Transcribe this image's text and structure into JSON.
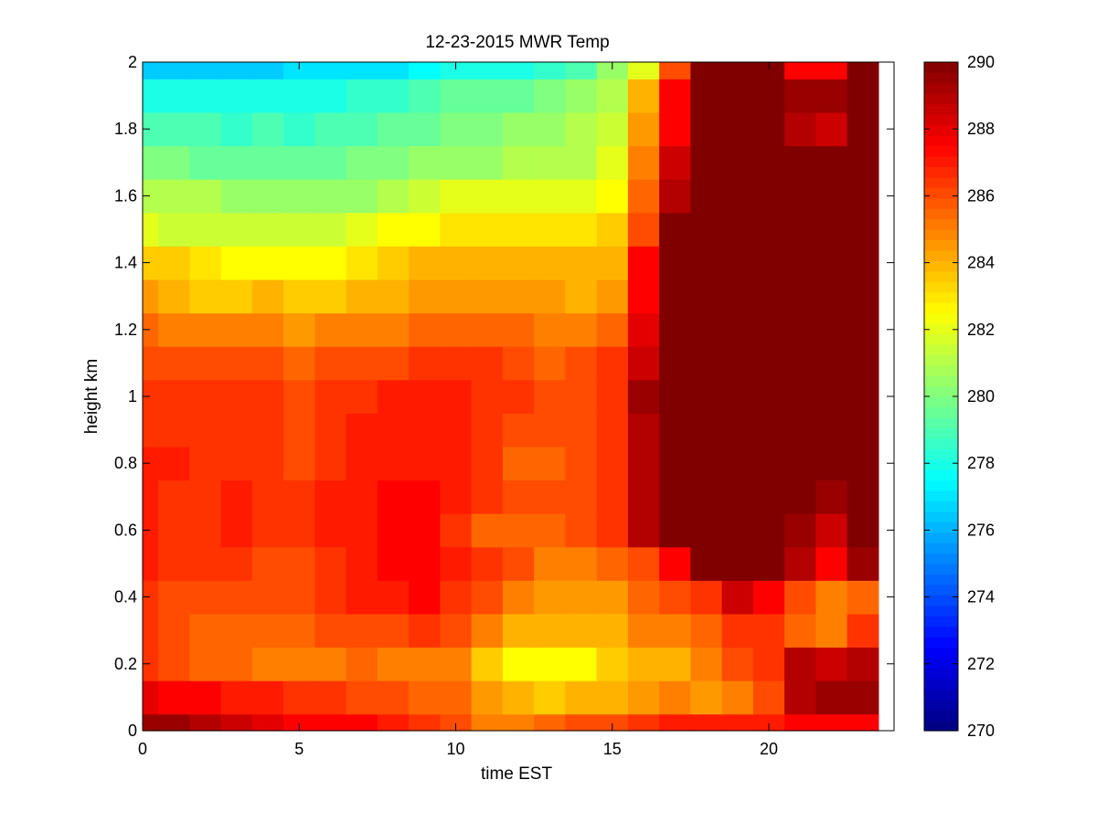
{
  "chart_data": {
    "type": "heatmap",
    "title": "12-23-2015 MWR Temp",
    "xlabel": "time EST",
    "ylabel": "height km",
    "xlim": [
      0,
      24
    ],
    "ylim": [
      0,
      2
    ],
    "xticks": [
      0,
      5,
      10,
      15,
      20
    ],
    "xtick_labels": [
      "0",
      "5",
      "10",
      "15",
      "20"
    ],
    "yticks": [
      0,
      0.2,
      0.4,
      0.6,
      0.8,
      1,
      1.2,
      1.4,
      1.6,
      1.8,
      2
    ],
    "ytick_labels": [
      "0",
      "0.2",
      "0.4",
      "0.6",
      "0.8",
      "1",
      "1.2",
      "1.4",
      "1.6",
      "1.8",
      "2"
    ],
    "colorbar": {
      "colormap": "jet",
      "clim": [
        270,
        290
      ],
      "ticks": [
        270,
        272,
        274,
        276,
        278,
        280,
        282,
        284,
        286,
        288,
        290
      ],
      "tick_labels": [
        "270",
        "272",
        "274",
        "276",
        "278",
        "280",
        "282",
        "284",
        "286",
        "288",
        "290"
      ]
    },
    "x_edges": [
      0,
      0.5,
      1.5,
      2.5,
      3.5,
      4.5,
      5.5,
      6.5,
      7.5,
      8.5,
      9.5,
      10.5,
      11.5,
      12.5,
      13.5,
      14.5,
      15.5,
      16.5,
      17.5,
      18.5,
      19.5,
      20.5,
      21.5,
      22.5,
      23.5
    ],
    "y_edges": [
      0,
      0.05,
      0.15,
      0.25,
      0.35,
      0.45,
      0.55,
      0.65,
      0.75,
      0.85,
      0.95,
      1.05,
      1.15,
      1.25,
      1.35,
      1.45,
      1.55,
      1.65,
      1.75,
      1.85,
      1.95,
      2
    ],
    "values": [
      [
        289.5,
        289.5,
        289.0,
        288.5,
        288.0,
        287.5,
        287.5,
        287.5,
        287.0,
        286.5,
        286.0,
        285.0,
        285.0,
        285.5,
        286.0,
        286.0,
        286.5,
        287.0,
        287.0,
        287.0,
        287.0,
        287.5,
        287.5,
        287.5
      ],
      [
        288.0,
        287.5,
        287.5,
        287.0,
        287.0,
        286.5,
        286.5,
        286.0,
        286.0,
        285.5,
        285.5,
        284.5,
        284.0,
        283.5,
        284.0,
        284.0,
        284.5,
        285.0,
        284.5,
        285.0,
        286.0,
        289.0,
        289.5,
        289.5
      ],
      [
        286.5,
        286.0,
        285.5,
        285.5,
        285.0,
        285.0,
        285.0,
        285.5,
        285.0,
        285.0,
        285.0,
        283.5,
        282.5,
        282.5,
        282.5,
        283.5,
        284.0,
        284.0,
        285.0,
        286.0,
        286.5,
        289.0,
        288.5,
        289.0
      ],
      [
        286.5,
        286.0,
        285.5,
        285.5,
        285.5,
        285.5,
        286.0,
        286.0,
        286.0,
        286.5,
        286.0,
        285.0,
        284.0,
        284.0,
        284.0,
        284.0,
        285.0,
        285.0,
        285.5,
        286.5,
        286.5,
        285.5,
        285.0,
        286.5
      ],
      [
        286.5,
        286.0,
        286.0,
        286.0,
        286.0,
        286.0,
        286.5,
        287.0,
        287.0,
        287.5,
        286.5,
        286.0,
        285.0,
        284.5,
        284.5,
        284.5,
        285.5,
        286.0,
        286.5,
        288.5,
        287.5,
        286.0,
        285.0,
        285.5
      ],
      [
        287.0,
        286.5,
        286.5,
        286.5,
        286.0,
        286.0,
        286.5,
        287.0,
        287.5,
        287.5,
        287.0,
        286.5,
        286.0,
        285.0,
        285.0,
        285.5,
        286.0,
        287.5,
        290.0,
        290.0,
        290.0,
        289.0,
        287.5,
        289.5
      ],
      [
        287.0,
        286.5,
        286.5,
        287.0,
        286.5,
        286.5,
        287.0,
        287.0,
        287.5,
        287.5,
        286.5,
        285.5,
        285.5,
        285.5,
        286.0,
        286.5,
        289.0,
        290.0,
        290.0,
        290.0,
        290.0,
        289.5,
        288.5,
        290.0
      ],
      [
        287.0,
        286.5,
        286.5,
        287.0,
        286.5,
        286.5,
        287.0,
        287.0,
        287.5,
        287.5,
        287.0,
        286.5,
        286.0,
        286.0,
        286.0,
        286.5,
        289.0,
        290.0,
        290.0,
        290.0,
        290.0,
        290.0,
        289.5,
        290.0
      ],
      [
        287.0,
        287.0,
        286.5,
        286.5,
        286.5,
        286.0,
        286.5,
        287.0,
        287.0,
        287.0,
        287.0,
        286.5,
        285.5,
        285.5,
        286.0,
        286.5,
        289.0,
        290.0,
        290.0,
        290.0,
        290.0,
        290.0,
        290.0,
        290.0
      ],
      [
        286.5,
        286.5,
        286.5,
        286.5,
        286.5,
        286.0,
        286.5,
        287.0,
        287.0,
        287.0,
        287.0,
        286.5,
        286.0,
        286.0,
        286.0,
        286.5,
        289.0,
        290.0,
        290.0,
        290.0,
        290.0,
        290.0,
        290.0,
        290.0
      ],
      [
        286.5,
        286.5,
        286.5,
        286.5,
        286.5,
        286.0,
        286.5,
        286.5,
        287.0,
        287.0,
        287.0,
        286.5,
        286.5,
        286.0,
        286.0,
        286.5,
        289.5,
        290.0,
        290.0,
        290.0,
        290.0,
        290.0,
        290.0,
        290.0
      ],
      [
        286.0,
        286.0,
        286.0,
        286.0,
        286.0,
        285.5,
        286.0,
        286.0,
        286.0,
        286.5,
        286.5,
        286.5,
        286.0,
        285.5,
        286.0,
        286.5,
        288.5,
        290.0,
        290.0,
        290.0,
        290.0,
        290.0,
        290.0,
        290.0
      ],
      [
        285.5,
        285.0,
        285.0,
        285.0,
        285.0,
        284.5,
        285.0,
        285.0,
        285.0,
        285.5,
        285.5,
        285.5,
        285.5,
        285.0,
        285.0,
        285.5,
        288.0,
        290.0,
        290.0,
        290.0,
        290.0,
        290.0,
        290.0,
        290.0
      ],
      [
        284.5,
        284.0,
        283.5,
        283.5,
        284.0,
        283.5,
        283.5,
        284.0,
        284.0,
        284.5,
        284.5,
        284.5,
        284.5,
        284.5,
        284.0,
        284.5,
        287.5,
        290.0,
        290.0,
        290.0,
        290.0,
        290.0,
        290.0,
        290.0
      ],
      [
        283.5,
        283.5,
        283.0,
        282.5,
        282.5,
        282.5,
        282.5,
        283.0,
        283.5,
        284.0,
        284.0,
        284.0,
        284.0,
        284.0,
        284.0,
        284.0,
        287.5,
        290.0,
        290.0,
        290.0,
        290.0,
        290.0,
        290.0,
        290.0
      ],
      [
        282.0,
        281.5,
        281.5,
        281.5,
        281.5,
        281.5,
        281.5,
        282.0,
        282.5,
        282.5,
        283.0,
        283.0,
        283.0,
        283.0,
        283.0,
        283.5,
        286.0,
        290.0,
        290.0,
        290.0,
        290.0,
        290.0,
        290.0,
        290.0
      ],
      [
        281.0,
        281.0,
        281.0,
        280.5,
        280.5,
        280.5,
        280.5,
        280.5,
        281.0,
        281.5,
        282.0,
        282.0,
        282.0,
        282.0,
        282.0,
        282.5,
        285.5,
        289.0,
        290.0,
        290.0,
        290.0,
        290.0,
        290.0,
        290.0
      ],
      [
        280.0,
        280.0,
        279.5,
        279.5,
        279.5,
        279.5,
        279.5,
        280.0,
        280.0,
        280.5,
        280.5,
        280.5,
        281.0,
        281.0,
        281.0,
        282.0,
        285.0,
        288.5,
        290.0,
        290.0,
        290.0,
        290.0,
        290.0,
        290.0
      ],
      [
        279.0,
        279.0,
        279.0,
        278.5,
        279.0,
        278.5,
        279.0,
        279.0,
        279.5,
        279.5,
        280.0,
        280.0,
        280.5,
        280.5,
        281.0,
        281.5,
        284.5,
        287.5,
        290.0,
        290.0,
        290.0,
        289.0,
        288.5,
        290.0
      ],
      [
        278.0,
        278.0,
        278.0,
        278.0,
        278.0,
        278.0,
        278.0,
        278.5,
        278.5,
        279.0,
        279.5,
        279.5,
        279.5,
        280.0,
        280.5,
        281.0,
        284.0,
        287.5,
        290.0,
        290.0,
        290.0,
        289.5,
        289.5,
        290.0
      ],
      [
        276.5,
        276.5,
        276.5,
        276.5,
        276.5,
        277.0,
        277.0,
        277.0,
        277.0,
        277.5,
        278.0,
        278.0,
        278.0,
        278.5,
        279.0,
        280.5,
        282.0,
        286.0,
        290.0,
        290.0,
        290.0,
        287.5,
        287.5,
        290.0
      ]
    ]
  }
}
